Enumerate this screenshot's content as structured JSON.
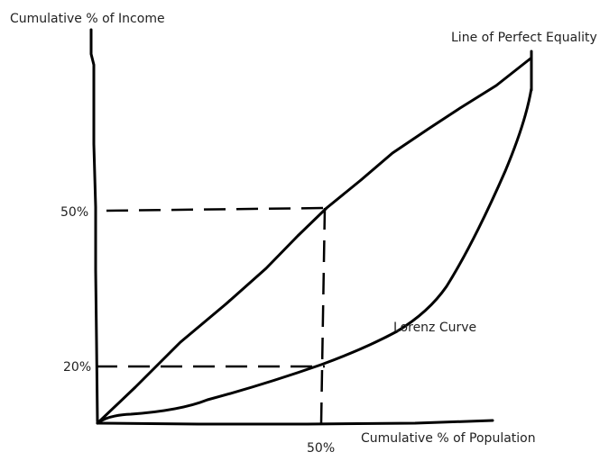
{
  "labels": {
    "y_axis": "Cumulative % of Income",
    "x_axis": "Cumulative % of Population",
    "equality_line": "Line of Perfect Equality",
    "lorenz_curve": "Lorenz Curve",
    "y_tick_50": "50%",
    "y_tick_20": "20%",
    "x_tick_50": "50%"
  },
  "colors": {
    "ink": "#000000",
    "text": "#222222",
    "background": "#ffffff"
  }
}
